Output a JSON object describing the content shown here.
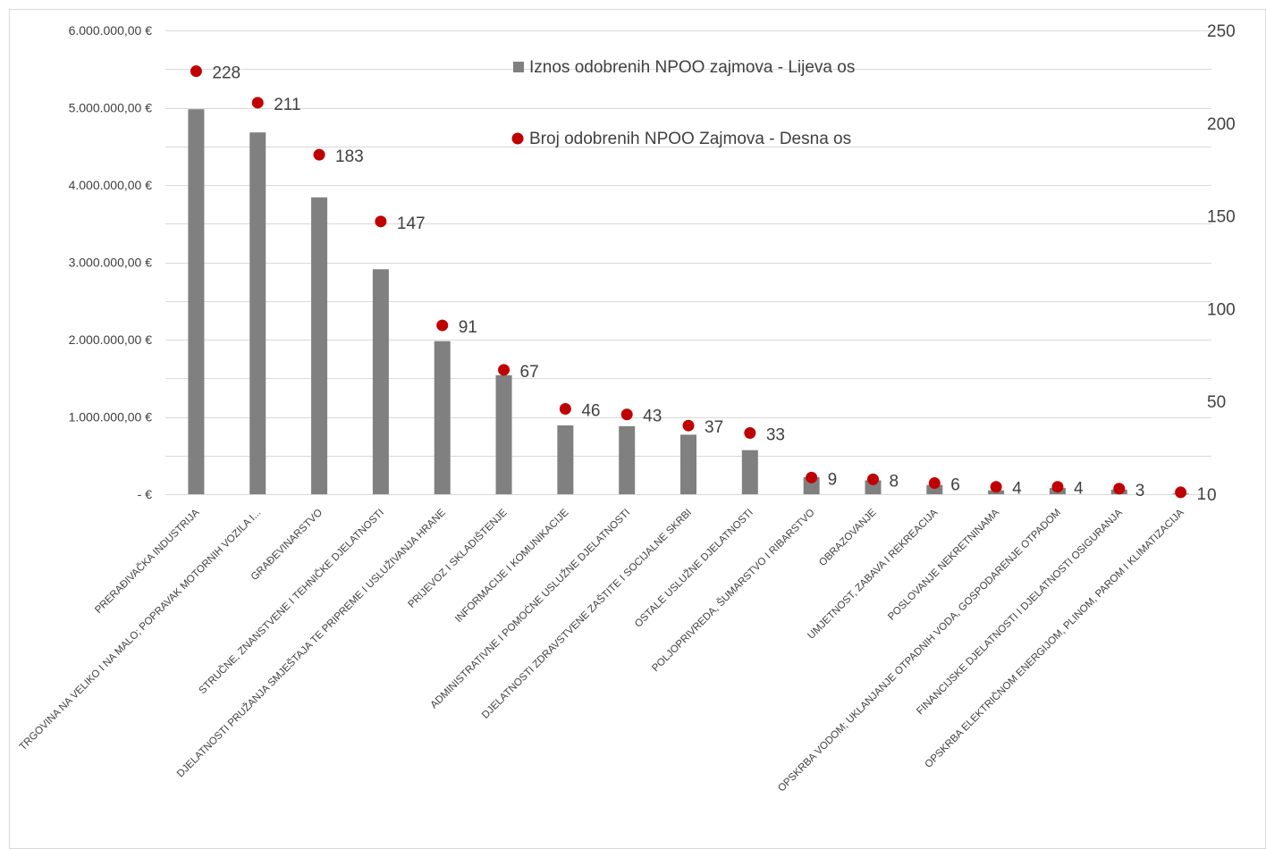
{
  "chart_data": {
    "type": "bar",
    "combo": "bar + scatter (secondary axis)",
    "categories": [
      "PRERAĐIVAČKA INDUSTRIJA",
      "TRGOVINA NA VELIKO I NA MALO; POPRAVAK MOTORNIH VOZILA I...",
      "GRAĐEVINARSTVO",
      "STRUČNE, ZNANSTVENE I TEHNIČKE DJELATNOSTI",
      "DJELATNOSTI PRUŽANJA SMJEŠTAJA TE PRIPREME I USLUŽIVANJA HRANE",
      "PRIJEVOZ I SKLADIŠTENJE",
      "INFORMACIJE I KOMUNIKACIJE",
      "ADMINISTRATIVNE I POMOĆNE USLUŽNE DJELATNOSTI",
      "DJELATNOSTI ZDRAVSTVENE ZAŠTITE I SOCIJALNE SKRBI",
      "OSTALE USLUŽNE DJELATNOSTI",
      "POLJOPRIVREDA, ŠUMARSTVO I RIBARSTVO",
      "OBRAZOVANJE",
      "UMJETNOST, ZABAVA I REKREACIJA",
      "POSLOVANJE NEKRETNINAMA",
      "OPSKRBA VODOM; UKLANJANJE OTPADNIH VODA, GOSPODARENJE OTPADOM",
      "FINANCIJSKE DJELATNOSTI I DJELATNOSTI OSIGURANJA",
      "OPSKRBA ELEKTRIČNOM ENERGIJOM, PLINOM, PAROM I KLIMATIZACIJA"
    ],
    "series": [
      {
        "name": "Iznos odobrenih NPOO zajmova - Lijeva os",
        "type": "bar",
        "axis": "left",
        "color": "#808080",
        "values": [
          4980000,
          4680000,
          3840000,
          2910000,
          1980000,
          1540000,
          890000,
          880000,
          770000,
          570000,
          220000,
          180000,
          120000,
          50000,
          80000,
          60000,
          10000
        ]
      },
      {
        "name": "Broj odobrenih NPOO Zajmova - Desna os",
        "type": "scatter",
        "axis": "right",
        "color": "#C00000",
        "values": [
          228,
          211,
          183,
          147,
          91,
          67,
          46,
          43,
          37,
          33,
          9,
          8,
          6,
          4,
          4,
          3,
          1
        ]
      }
    ],
    "left_axis": {
      "ylim": [
        0,
        6000000
      ],
      "ticks": [
        "-  €",
        "1.000.000,00 €",
        "2.000.000,00 €",
        "3.000.000,00 €",
        "4.000.000,00 €",
        "5.000.000,00 €",
        "6.000.000,00 €"
      ]
    },
    "right_axis": {
      "ylim": [
        0,
        250
      ],
      "ticks": [
        "0",
        "50",
        "100",
        "150",
        "200",
        "250"
      ]
    },
    "data_labels": [
      "228",
      "211",
      "183",
      "147",
      "91",
      "67",
      "46",
      "43",
      "37",
      "33",
      "9",
      "8",
      "6",
      "4",
      "4",
      "3",
      "1"
    ],
    "grid": true,
    "legend_position": "top-center, inside plot",
    "gridline_color": "#d9d9d9",
    "text_color": "#404040"
  }
}
